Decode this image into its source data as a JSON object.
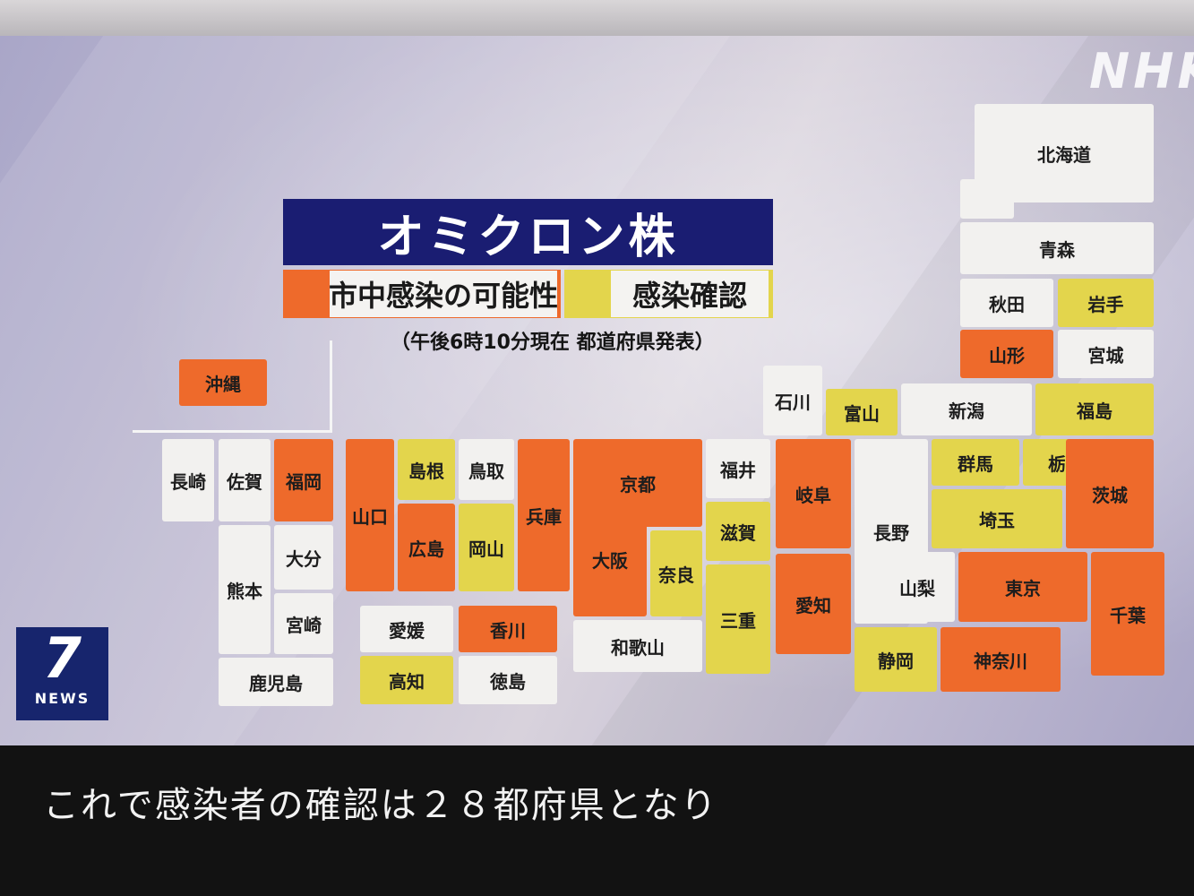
{
  "broadcaster_logo": "NHK",
  "program_logo": {
    "number": "7",
    "text": "NEWS"
  },
  "title": "オミクロン株",
  "legend": {
    "community_spread": "市中感染の可能性",
    "confirmed": "感染確認",
    "note": "（午後6時10分現在 都道府県発表）"
  },
  "colors": {
    "community_spread": "#ee6a2b",
    "confirmed": "#e3d54c",
    "none": "#f2f1ef",
    "title_bg": "#1a1d72"
  },
  "prefectures": {
    "hokkaido": "北海道",
    "aomori": "青森",
    "akita": "秋田",
    "iwate": "岩手",
    "yamagata": "山形",
    "miyagi": "宮城",
    "fukushima": "福島",
    "niigata": "新潟",
    "toyama": "富山",
    "ishikawa": "石川",
    "fukui": "福井",
    "gunma": "群馬",
    "tochigi": "栃木",
    "ibaraki": "茨城",
    "saitama": "埼玉",
    "nagano": "長野",
    "gifu": "岐阜",
    "yamanashi": "山梨",
    "tokyo": "東京",
    "chiba": "千葉",
    "kanagawa": "神奈川",
    "shizuoka": "静岡",
    "aichi": "愛知",
    "mie": "三重",
    "shiga": "滋賀",
    "kyoto": "京都",
    "osaka": "大阪",
    "nara": "奈良",
    "wakayama": "和歌山",
    "hyogo": "兵庫",
    "tottori": "鳥取",
    "shimane": "島根",
    "okayama": "岡山",
    "hiroshima": "広島",
    "yamaguchi": "山口",
    "kagawa": "香川",
    "ehime": "愛媛",
    "tokushima": "徳島",
    "kochi": "高知",
    "fukuoka": "福岡",
    "saga": "佐賀",
    "nagasaki": "長崎",
    "oita": "大分",
    "kumamoto": "熊本",
    "miyazaki": "宮崎",
    "kagoshima": "鹿児島",
    "okinawa": "沖縄"
  },
  "subtitle": "これで感染者の確認は２８都府県となり"
}
